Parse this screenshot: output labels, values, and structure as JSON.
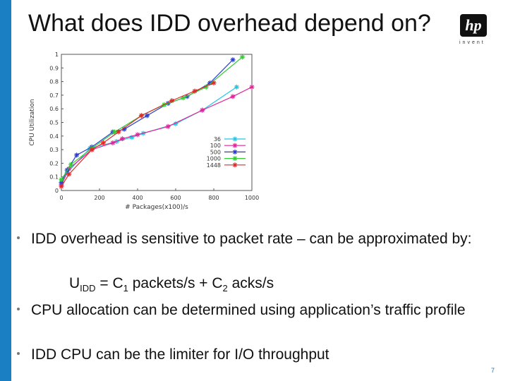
{
  "slide": {
    "title": "What does IDD overhead depend on?",
    "logo_text": "hp",
    "logo_tagline": "invent",
    "page_number": "7",
    "accent_color": "#1b7fc4"
  },
  "bullets": [
    "IDD overhead is sensitive to packet rate – can be approximated by:",
    "CPU allocation can be determined using application’s traffic profile",
    "IDD CPU can be the limiter for I/O throughput"
  ],
  "formula": {
    "u": "U",
    "u_sub": "IDD",
    "eq": " = C",
    "c1_sub": "1",
    "middle": " packets/s + C",
    "c2_sub": "2",
    "end": " acks/s"
  },
  "chart_data": {
    "type": "line",
    "xlabel": "# Packages(x100)/s",
    "ylabel": "CPU Utilization",
    "xlim": [
      0,
      1000
    ],
    "ylim": [
      0,
      1
    ],
    "xticks": [
      0,
      200,
      400,
      600,
      800,
      1000
    ],
    "yticks": [
      0,
      0.1,
      0.2,
      0.3,
      0.4,
      0.5,
      0.6,
      0.7,
      0.8,
      0.9,
      1
    ],
    "legend_position": "bottom-right",
    "grid": false,
    "series": [
      {
        "name": "36",
        "color": "#22c6e6",
        "marker": "star",
        "points": [
          [
            0,
            0.05
          ],
          [
            30,
            0.13
          ],
          [
            150,
            0.31
          ],
          [
            290,
            0.36
          ],
          [
            370,
            0.39
          ],
          [
            430,
            0.42
          ],
          [
            600,
            0.49
          ],
          [
            740,
            0.59
          ],
          [
            920,
            0.76
          ]
        ]
      },
      {
        "name": "100",
        "color": "#e0269a",
        "marker": "star",
        "points": [
          [
            0,
            0.04
          ],
          [
            40,
            0.16
          ],
          [
            160,
            0.3
          ],
          [
            270,
            0.35
          ],
          [
            320,
            0.38
          ],
          [
            400,
            0.41
          ],
          [
            560,
            0.47
          ],
          [
            740,
            0.59
          ],
          [
            900,
            0.69
          ],
          [
            1000,
            0.76
          ]
        ]
      },
      {
        "name": "500",
        "color": "#2a3fd0",
        "marker": "star",
        "points": [
          [
            0,
            0.06
          ],
          [
            30,
            0.15
          ],
          [
            80,
            0.26
          ],
          [
            160,
            0.32
          ],
          [
            270,
            0.43
          ],
          [
            330,
            0.45
          ],
          [
            450,
            0.55
          ],
          [
            560,
            0.64
          ],
          [
            660,
            0.69
          ],
          [
            780,
            0.79
          ],
          [
            900,
            0.96
          ]
        ]
      },
      {
        "name": "1000",
        "color": "#33cc33",
        "marker": "star",
        "points": [
          [
            0,
            0.08
          ],
          [
            50,
            0.19
          ],
          [
            160,
            0.31
          ],
          [
            280,
            0.43
          ],
          [
            420,
            0.55
          ],
          [
            540,
            0.63
          ],
          [
            640,
            0.68
          ],
          [
            760,
            0.76
          ],
          [
            950,
            0.98
          ]
        ]
      },
      {
        "name": "1448",
        "color": "#e02a2a",
        "marker": "star",
        "points": [
          [
            0,
            0.03
          ],
          [
            40,
            0.12
          ],
          [
            160,
            0.3
          ],
          [
            220,
            0.35
          ],
          [
            300,
            0.43
          ],
          [
            420,
            0.55
          ],
          [
            580,
            0.66
          ],
          [
            700,
            0.73
          ],
          [
            800,
            0.79
          ]
        ]
      }
    ]
  }
}
